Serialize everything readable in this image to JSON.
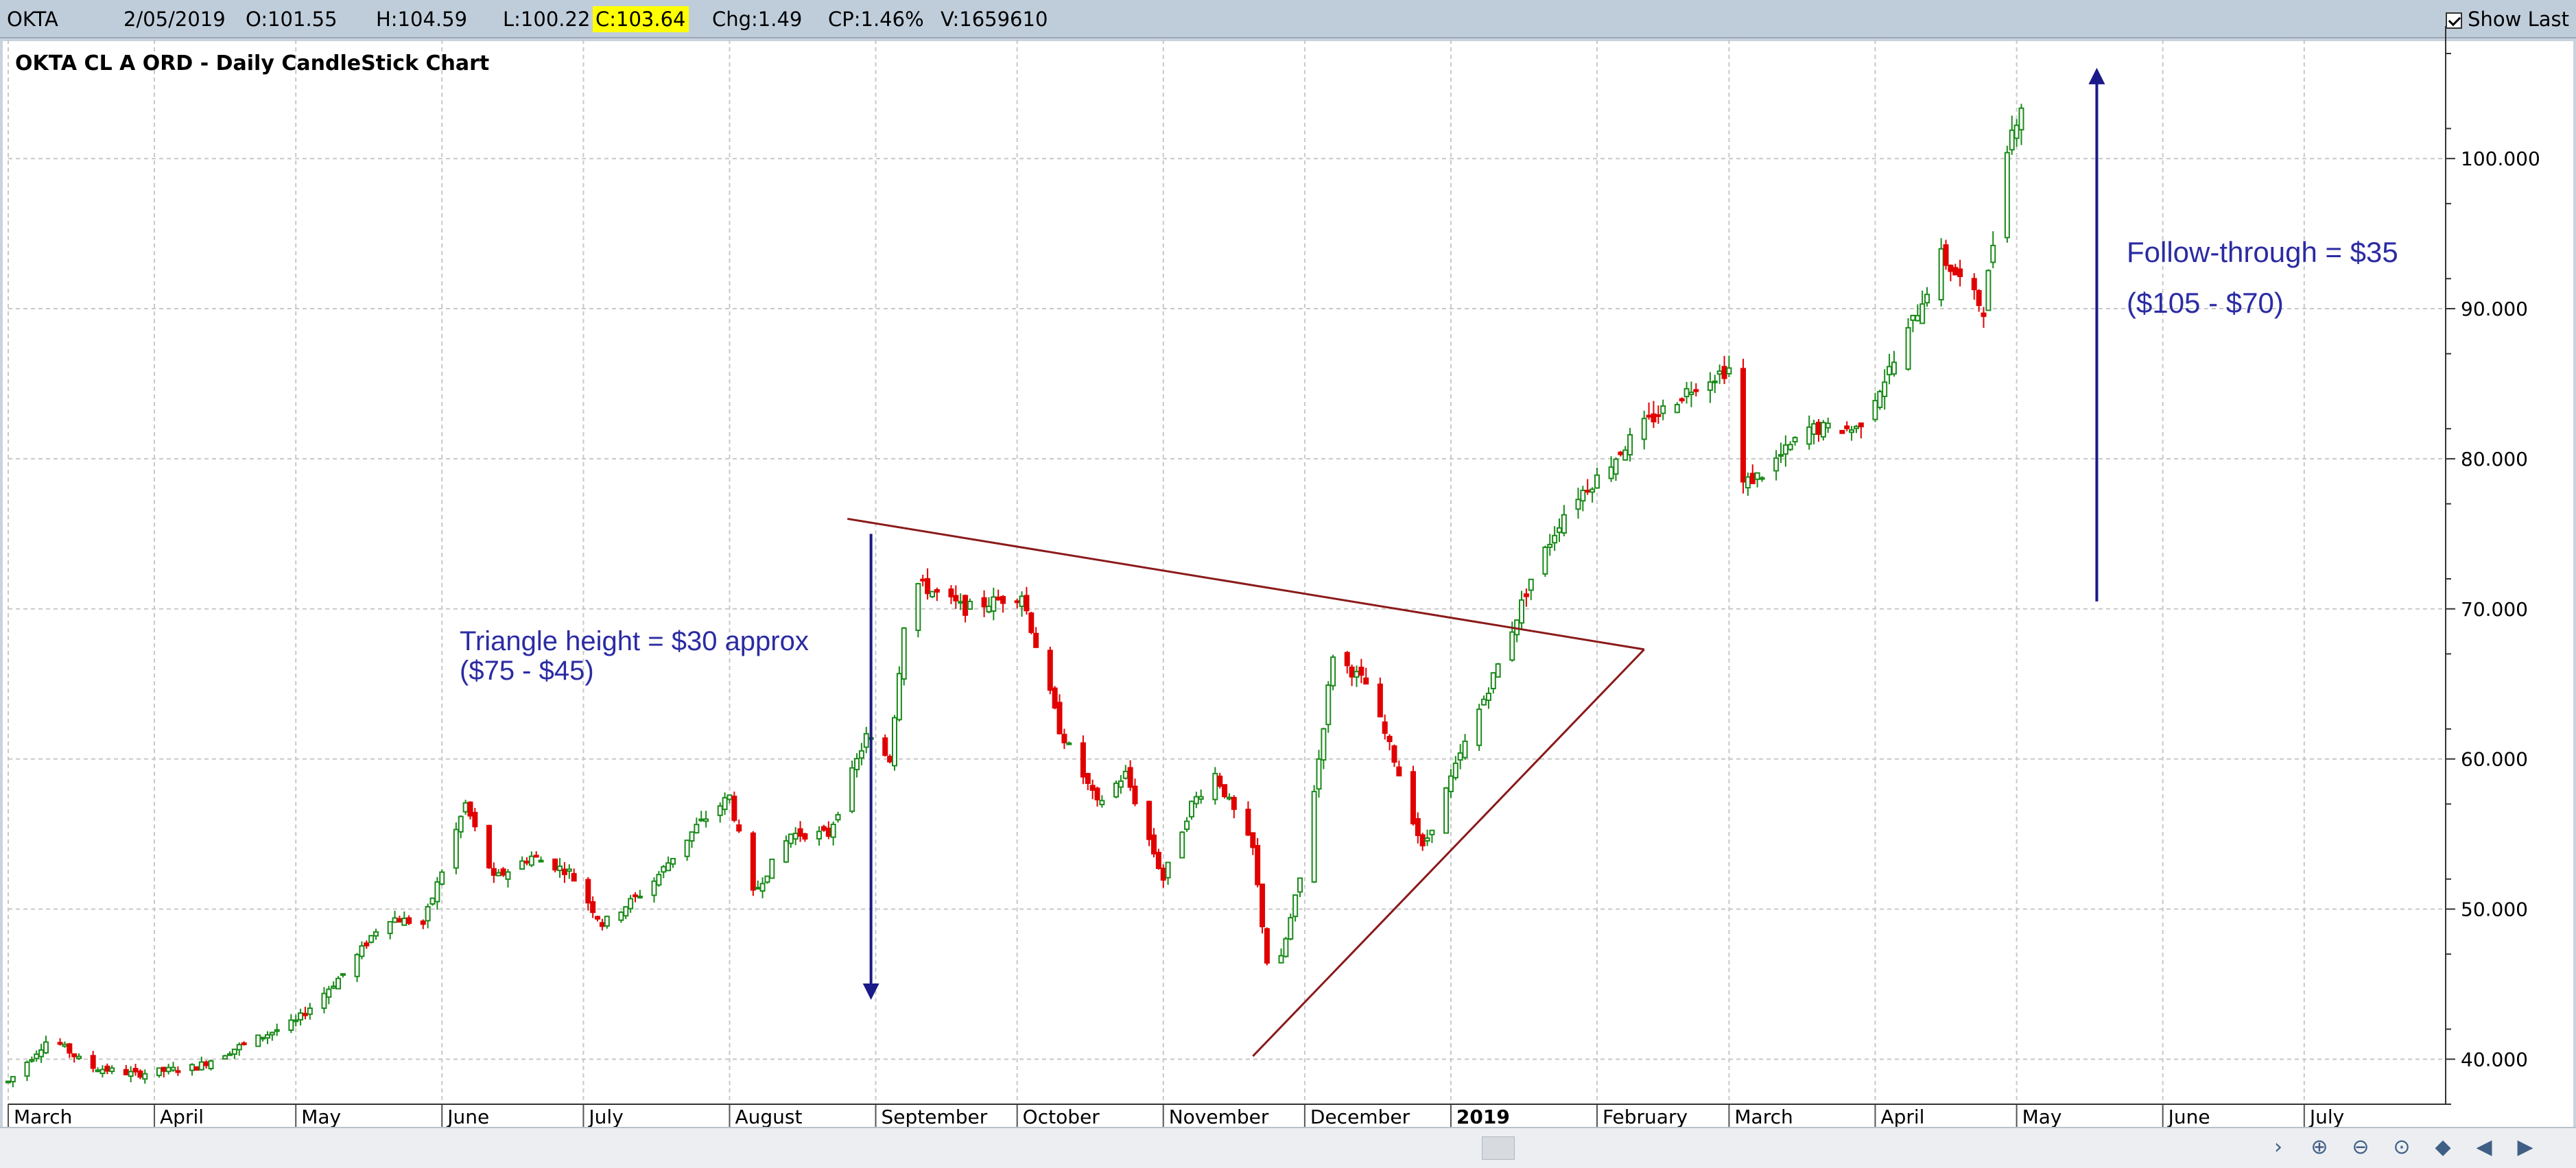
{
  "quote_bar": {
    "symbol": "OKTA",
    "date": "2/05/2019",
    "open": "O:101.55",
    "high": "H:104.59",
    "low": "L:100.22",
    "close": "C:103.64",
    "change": "Chg:1.49",
    "change_pct": "CP:1.46%",
    "volume": "V:1659610",
    "show_last_label": "Show Last",
    "show_last_checked": true
  },
  "chart_data": {
    "type": "candlestick",
    "title": "OKTA CL A ORD - Daily CandleStick Chart",
    "xlabel": "",
    "ylabel": "",
    "x_range": [
      "2018-03-01",
      "2019-07-31"
    ],
    "ylim": [
      37,
      107
    ],
    "y_ticks": [
      "40.000",
      "50.000",
      "60.000",
      "70.000",
      "80.000",
      "90.000",
      "100.000"
    ],
    "x_tick_labels": [
      {
        "label": "March",
        "date": "2018-03-01",
        "bold": false
      },
      {
        "label": "April",
        "date": "2018-04-01",
        "bold": false
      },
      {
        "label": "May",
        "date": "2018-05-01",
        "bold": false
      },
      {
        "label": "June",
        "date": "2018-06-01",
        "bold": false
      },
      {
        "label": "July",
        "date": "2018-07-01",
        "bold": false
      },
      {
        "label": "August",
        "date": "2018-08-01",
        "bold": false
      },
      {
        "label": "September",
        "date": "2018-09-01",
        "bold": false
      },
      {
        "label": "October",
        "date": "2018-10-01",
        "bold": false
      },
      {
        "label": "November",
        "date": "2018-11-01",
        "bold": false
      },
      {
        "label": "December",
        "date": "2018-12-01",
        "bold": false
      },
      {
        "label": "2019",
        "date": "2019-01-01",
        "bold": true
      },
      {
        "label": "February",
        "date": "2019-02-01",
        "bold": false
      },
      {
        "label": "March",
        "date": "2019-03-01",
        "bold": false
      },
      {
        "label": "April",
        "date": "2019-04-01",
        "bold": false
      },
      {
        "label": "May",
        "date": "2019-05-01",
        "bold": false
      },
      {
        "label": "June",
        "date": "2019-06-01",
        "bold": false
      },
      {
        "label": "July",
        "date": "2019-07-01",
        "bold": false
      }
    ],
    "grid": true,
    "price_path": [
      [
        "2018-03-01",
        38.5
      ],
      [
        "2018-03-10",
        41.5
      ],
      [
        "2018-03-18",
        39.5
      ],
      [
        "2018-03-28",
        39.0
      ],
      [
        "2018-04-10",
        39.5
      ],
      [
        "2018-04-20",
        41.0
      ],
      [
        "2018-05-01",
        42.5
      ],
      [
        "2018-05-12",
        46.0
      ],
      [
        "2018-05-20",
        49.5
      ],
      [
        "2018-05-28",
        49.0
      ],
      [
        "2018-06-06",
        57.0
      ],
      [
        "2018-06-12",
        52.0
      ],
      [
        "2018-06-20",
        53.5
      ],
      [
        "2018-06-28",
        52.5
      ],
      [
        "2018-07-05",
        49.0
      ],
      [
        "2018-07-15",
        51.5
      ],
      [
        "2018-07-25",
        55.5
      ],
      [
        "2018-08-01",
        57.5
      ],
      [
        "2018-08-06",
        51.0
      ],
      [
        "2018-08-14",
        55.0
      ],
      [
        "2018-08-22",
        55.0
      ],
      [
        "2018-08-30",
        61.5
      ],
      [
        "2018-09-04",
        60.0
      ],
      [
        "2018-09-08",
        72.0
      ],
      [
        "2018-09-20",
        70.0
      ],
      [
        "2018-10-02",
        71.0
      ],
      [
        "2018-10-10",
        62.0
      ],
      [
        "2018-10-18",
        57.0
      ],
      [
        "2018-10-24",
        59.0
      ],
      [
        "2018-11-01",
        52.0
      ],
      [
        "2018-11-07",
        57.0
      ],
      [
        "2018-11-12",
        59.0
      ],
      [
        "2018-11-20",
        54.0
      ],
      [
        "2018-11-24",
        44.0
      ],
      [
        "2018-11-30",
        52.0
      ],
      [
        "2018-12-04",
        60.0
      ],
      [
        "2018-12-07",
        67.0
      ],
      [
        "2018-12-14",
        65.0
      ],
      [
        "2018-12-20",
        60.0
      ],
      [
        "2018-12-26",
        54.0
      ],
      [
        "2019-01-04",
        61.0
      ],
      [
        "2019-01-12",
        67.0
      ],
      [
        "2019-01-18",
        72.0
      ],
      [
        "2019-01-26",
        77.0
      ],
      [
        "2019-02-02",
        79.0
      ],
      [
        "2019-02-10",
        82.0
      ],
      [
        "2019-02-22",
        85.0
      ],
      [
        "2019-03-01",
        86.0
      ],
      [
        "2019-03-02",
        78.0
      ],
      [
        "2019-03-08",
        79.0
      ],
      [
        "2019-03-18",
        82.0
      ],
      [
        "2019-03-28",
        82.0
      ],
      [
        "2019-04-06",
        87.0
      ],
      [
        "2019-04-15",
        93.5
      ],
      [
        "2019-04-24",
        90.0
      ],
      [
        "2019-04-29",
        101.0
      ],
      [
        "2019-05-02",
        103.64
      ]
    ],
    "annotations": [
      {
        "type": "text",
        "text": "Triangle height = $30 approx",
        "color": "#2b2ba3"
      },
      {
        "type": "text",
        "text": "($75 - $45)",
        "color": "#2b2ba3"
      },
      {
        "type": "text",
        "text": "Follow-through = $35",
        "color": "#2b2ba3"
      },
      {
        "type": "text",
        "text": "($105 - $70)",
        "color": "#2b2ba3"
      },
      {
        "type": "arrow",
        "name": "triangle-height-arrow",
        "x": "2018-08-31",
        "from": 75,
        "to": 44.5,
        "color": "#1a1a8a"
      },
      {
        "type": "arrow",
        "name": "follow-through-arrow",
        "x": "2019-05-18",
        "from": 70.5,
        "to": 105.5,
        "color": "#1a1a8a"
      },
      {
        "type": "line",
        "name": "upper-triangle-line",
        "from": [
          "2018-08-26",
          76.0
        ],
        "to": [
          "2019-02-11",
          67.3
        ],
        "color": "#8b1a1a"
      },
      {
        "type": "line",
        "name": "lower-triangle-line",
        "from": [
          "2018-11-20",
          40.2
        ],
        "to": [
          "2019-02-11",
          67.3
        ],
        "color": "#8b1a1a"
      }
    ],
    "colors": {
      "up": "#1a8a1a",
      "down": "#e00000",
      "grid": "#c8c8c8",
      "annotation_text": "#2b2ba3"
    }
  },
  "nav_buttons": [
    {
      "name": "scroll-right-icon",
      "glyph": "›"
    },
    {
      "name": "zoom-in-icon",
      "glyph": "⊕"
    },
    {
      "name": "zoom-out-icon",
      "glyph": "⊖"
    },
    {
      "name": "reset-zoom-icon",
      "glyph": "⊙"
    },
    {
      "name": "scroll-both-icon",
      "glyph": "◆"
    },
    {
      "name": "step-back-icon",
      "glyph": "◀"
    },
    {
      "name": "step-forward-icon",
      "glyph": "▶"
    }
  ]
}
